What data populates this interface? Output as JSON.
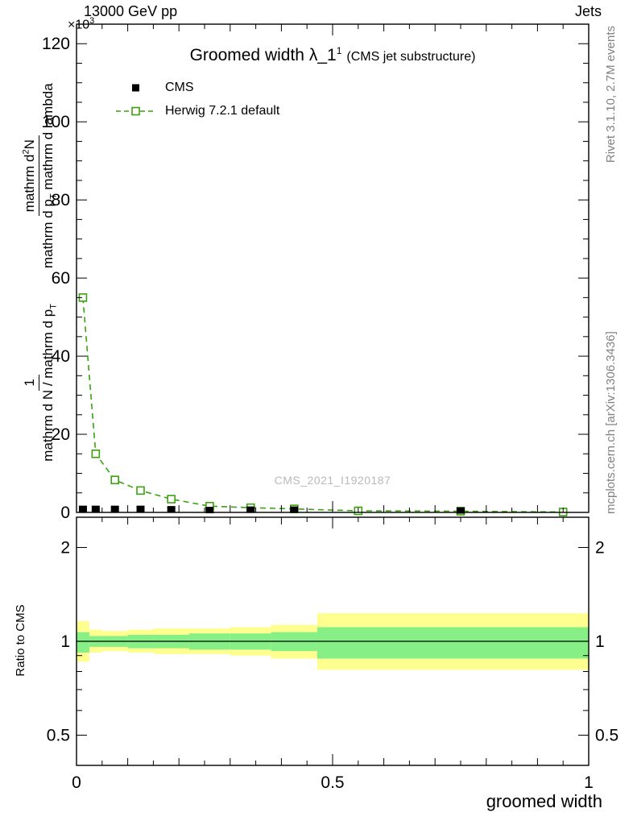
{
  "header": {
    "beam_energy": "13000 GeV pp",
    "analysis_group": "Jets"
  },
  "y_axis_multiplier": {
    "base": "×10",
    "exponent": "3"
  },
  "title": {
    "main": "Groomed width",
    "symbol": "λ_1",
    "superscript": "1",
    "note": "(CMS jet substructure)"
  },
  "legend": {
    "cms_label": "CMS",
    "herwig_label": "Herwig 7.2.1 default"
  },
  "watermark": "CMS_2021_I1920187",
  "sidebar": {
    "rivet_info": "Rivet 3.1.10,  2.7M events",
    "mcplots_ref": "mcplots.cern.ch [arXiv:1306.3436]"
  },
  "y_axis_label": {
    "frac1_numerator": "1",
    "frac1_denominator_main": "mathrm d N / mathrm d p",
    "frac1_denominator_sub": "T",
    "frac2_numerator_main": "mathrm d",
    "frac2_numerator_sup": "2",
    "frac2_numerator_tail": "N",
    "frac2_denominator_main": "mathrm d p",
    "frac2_denominator_sub": "T",
    "frac2_denominator_tail": " mathrm d lambda"
  },
  "ratio_panel_label": "Ratio to CMS",
  "x_axis_label": "groomed width",
  "colors": {
    "herwig_green": "#3aa10e",
    "band_yellow": "#ffff8f",
    "band_green": "#86f086",
    "watermark_gray": "#b9b9b9"
  },
  "chart_data": {
    "type": "line",
    "title": "Groomed width λ_1^1 (CMS jet substructure)",
    "xlabel": "groomed width",
    "main_panel": {
      "x_range": [
        0,
        1
      ],
      "y_range": [
        0,
        125
      ],
      "y_unit": "×10³",
      "grid": false,
      "legend_position": "top-left",
      "x_ticks": [
        {
          "value": 0,
          "label": "0"
        },
        {
          "value": 0.5,
          "label": "0.5"
        },
        {
          "value": 1,
          "label": "1"
        }
      ],
      "y_ticks": [
        0,
        20,
        40,
        60,
        80,
        100,
        120
      ],
      "series": [
        {
          "name": "CMS",
          "type": "scatter",
          "marker": "filled-square",
          "color": "#000000",
          "x": [
            0.0125,
            0.0375,
            0.075,
            0.125,
            0.185,
            0.26,
            0.34,
            0.425,
            0.75
          ],
          "y": [
            0.9,
            0.9,
            0.9,
            0.9,
            0.8,
            0.6,
            0.7,
            0.7,
            0.5
          ]
        },
        {
          "name": "Herwig 7.2.1 default",
          "type": "line",
          "style": "dashed",
          "marker": "open-square",
          "color": "#3aa10e",
          "x": [
            0.0125,
            0.0375,
            0.075,
            0.125,
            0.185,
            0.26,
            0.34,
            0.425,
            0.55,
            0.75,
            0.95
          ],
          "y": [
            55,
            15,
            8.3,
            5.6,
            3.4,
            1.6,
            1.2,
            0.9,
            0.4,
            0.3,
            0.1
          ]
        }
      ]
    },
    "ratio_panel": {
      "ylabel": "Ratio to CMS",
      "y_scale": "log",
      "y_range": [
        0.4,
        2.5
      ],
      "reference_line": 1,
      "y_ticks": [
        {
          "value": 0.5,
          "label": "0.5"
        },
        {
          "value": 1,
          "label": "1"
        },
        {
          "value": 2,
          "label": "2"
        }
      ],
      "y_minor_ticks": [
        0.6,
        0.7,
        0.8,
        0.9
      ],
      "bands": [
        {
          "x": [
            0,
            0.025
          ],
          "yellow": [
            0.86,
            1.16
          ],
          "green": [
            0.92,
            1.07
          ]
        },
        {
          "x": [
            0.025,
            0.05
          ],
          "yellow": [
            0.92,
            1.09
          ],
          "green": [
            0.96,
            1.04
          ]
        },
        {
          "x": [
            0.05,
            0.1
          ],
          "yellow": [
            0.93,
            1.08
          ],
          "green": [
            0.96,
            1.04
          ]
        },
        {
          "x": [
            0.1,
            0.15
          ],
          "yellow": [
            0.92,
            1.09
          ],
          "green": [
            0.95,
            1.05
          ]
        },
        {
          "x": [
            0.15,
            0.22
          ],
          "yellow": [
            0.91,
            1.1
          ],
          "green": [
            0.95,
            1.05
          ]
        },
        {
          "x": [
            0.22,
            0.3
          ],
          "yellow": [
            0.91,
            1.1
          ],
          "green": [
            0.94,
            1.06
          ]
        },
        {
          "x": [
            0.3,
            0.38
          ],
          "yellow": [
            0.9,
            1.11
          ],
          "green": [
            0.94,
            1.06
          ]
        },
        {
          "x": [
            0.38,
            0.47
          ],
          "yellow": [
            0.88,
            1.13
          ],
          "green": [
            0.93,
            1.07
          ]
        },
        {
          "x": [
            0.47,
            1.0
          ],
          "yellow": [
            0.81,
            1.23
          ],
          "green": [
            0.88,
            1.11
          ]
        }
      ]
    }
  }
}
